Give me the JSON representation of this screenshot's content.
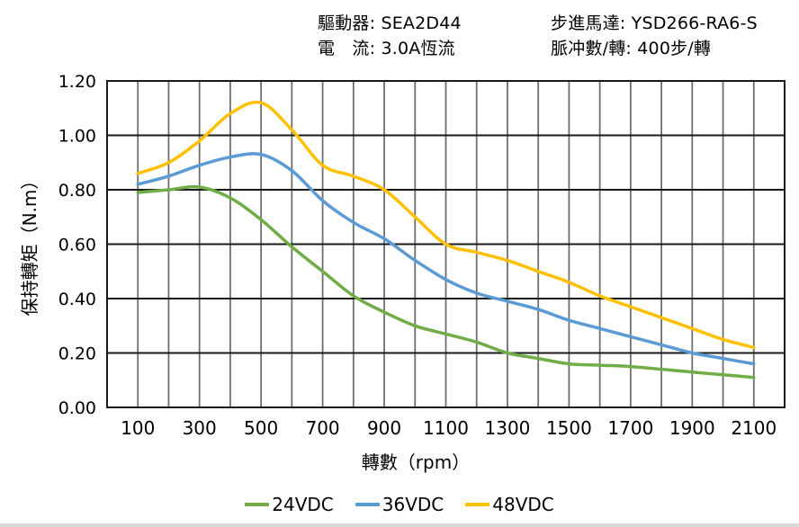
{
  "header": {
    "left": {
      "line1": "驅動器: SEA2D44",
      "line2": "電　流: 3.0A恆流"
    },
    "right": {
      "line1": "步進馬達: YSD266-RA6-S",
      "line2": "脈冲數/轉: 400步/轉"
    }
  },
  "chart_data": {
    "type": "line",
    "title": "",
    "xlabel": "轉數（rpm）",
    "ylabel": "保持轉矩（N.m）",
    "xlim": [
      0,
      2200
    ],
    "ylim": [
      0,
      1.2
    ],
    "grid": "both",
    "legend_position": "bottom",
    "x": [
      100,
      200,
      300,
      400,
      500,
      600,
      700,
      800,
      900,
      1000,
      1100,
      1200,
      1300,
      1400,
      1500,
      1600,
      1700,
      1800,
      1900,
      2000,
      2100
    ],
    "x_tick_labels": [
      "100",
      "300",
      "500",
      "700",
      "900",
      "1100",
      "1300",
      "1500",
      "1700",
      "1900",
      "2100"
    ],
    "x_ticks": [
      100,
      300,
      500,
      700,
      900,
      1100,
      1300,
      1500,
      1700,
      1900,
      2100
    ],
    "y_ticks": [
      0.0,
      0.2,
      0.4,
      0.6,
      0.8,
      1.0,
      1.2
    ],
    "y_tick_labels": [
      "0.00",
      "0.20",
      "0.40",
      "0.60",
      "0.80",
      "1.00",
      "1.20"
    ],
    "series": [
      {
        "name": "24VDC",
        "color": "#70AD47",
        "values": [
          0.79,
          0.8,
          0.81,
          0.77,
          0.69,
          0.59,
          0.5,
          0.41,
          0.35,
          0.3,
          0.27,
          0.24,
          0.2,
          0.18,
          0.16,
          0.155,
          0.15,
          0.14,
          0.13,
          0.12,
          0.11
        ]
      },
      {
        "name": "36VDC",
        "color": "#5B9BD5",
        "values": [
          0.82,
          0.85,
          0.89,
          0.92,
          0.93,
          0.87,
          0.76,
          0.68,
          0.62,
          0.54,
          0.47,
          0.42,
          0.39,
          0.36,
          0.32,
          0.29,
          0.26,
          0.23,
          0.2,
          0.18,
          0.16
        ]
      },
      {
        "name": "48VDC",
        "color": "#FFC000",
        "values": [
          0.86,
          0.9,
          0.98,
          1.08,
          1.12,
          1.02,
          0.89,
          0.85,
          0.8,
          0.7,
          0.6,
          0.57,
          0.54,
          0.5,
          0.46,
          0.41,
          0.37,
          0.33,
          0.29,
          0.25,
          0.22
        ]
      }
    ],
    "style": {
      "h_grid_color": "#1a1a1a",
      "v_grid_color": "#6e6e6e",
      "border_color": "#1a1a1a",
      "tick_label_color": "#000000",
      "axis_title_color": "#000000"
    }
  }
}
